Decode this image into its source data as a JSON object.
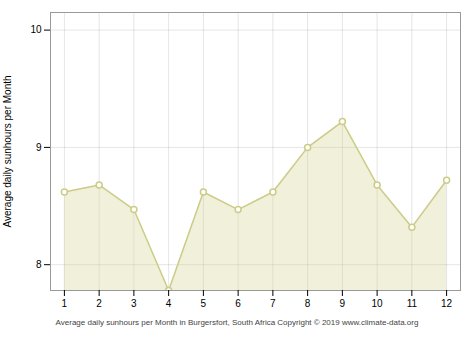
{
  "chart_data": {
    "type": "area",
    "x": [
      1,
      2,
      3,
      4,
      5,
      6,
      7,
      8,
      9,
      10,
      11,
      12
    ],
    "values": [
      8.62,
      8.68,
      8.47,
      7.78,
      8.62,
      8.47,
      8.62,
      9.0,
      9.22,
      8.68,
      8.32,
      8.72
    ],
    "color": "#CCCC88",
    "marker": "o",
    "ylabel": "Average daily sunhours per Month",
    "xlabel": "Average daily sunhours per Month in Burgersfort, South Africa Copyright © 2019 www.climate-data.org",
    "xlim": [
      0.6,
      12.4
    ],
    "ylim": [
      7.78,
      10.15
    ],
    "xticks": [
      1,
      2,
      3,
      4,
      5,
      6,
      7,
      8,
      9,
      10,
      11,
      12
    ],
    "yticks": [
      8,
      9,
      10
    ],
    "grid": true
  }
}
